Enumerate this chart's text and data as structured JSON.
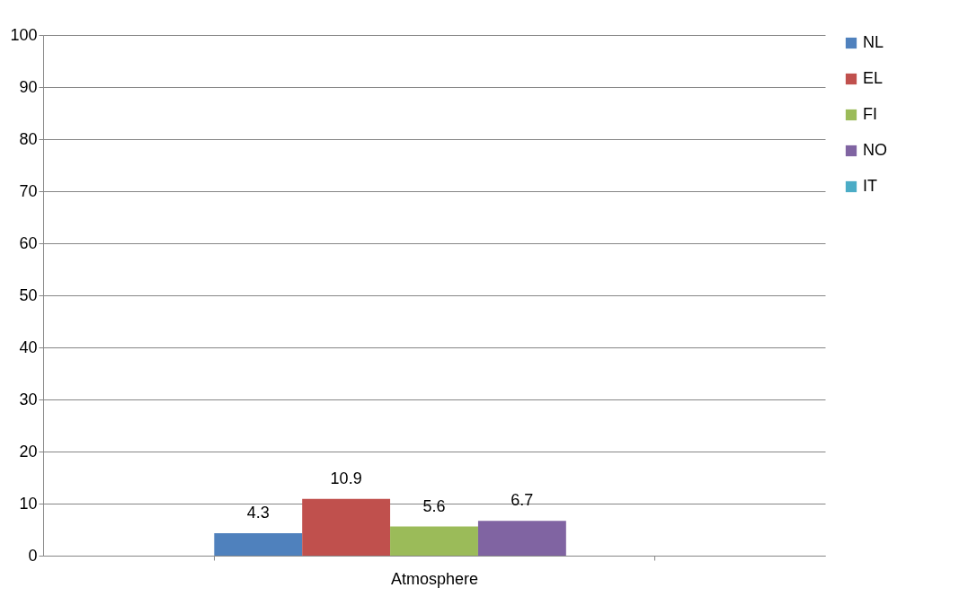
{
  "chart_data": {
    "type": "bar",
    "categories": [
      "Atmosphere"
    ],
    "series": [
      {
        "name": "NL",
        "color": "#4f81bd",
        "values": [
          4.3
        ]
      },
      {
        "name": "EL",
        "color": "#c0504d",
        "values": [
          10.9
        ]
      },
      {
        "name": "FI",
        "color": "#9bbb59",
        "values": [
          5.6
        ]
      },
      {
        "name": "NO",
        "color": "#8064a2",
        "values": [
          6.7
        ]
      },
      {
        "name": "IT",
        "color": "#4bacc6",
        "values": [
          null
        ]
      }
    ],
    "ylim": [
      0,
      100
    ],
    "yticks": [
      0,
      10,
      20,
      30,
      40,
      50,
      60,
      70,
      80,
      90,
      100
    ],
    "grid": "y",
    "legend": "right",
    "data_labels": true
  }
}
